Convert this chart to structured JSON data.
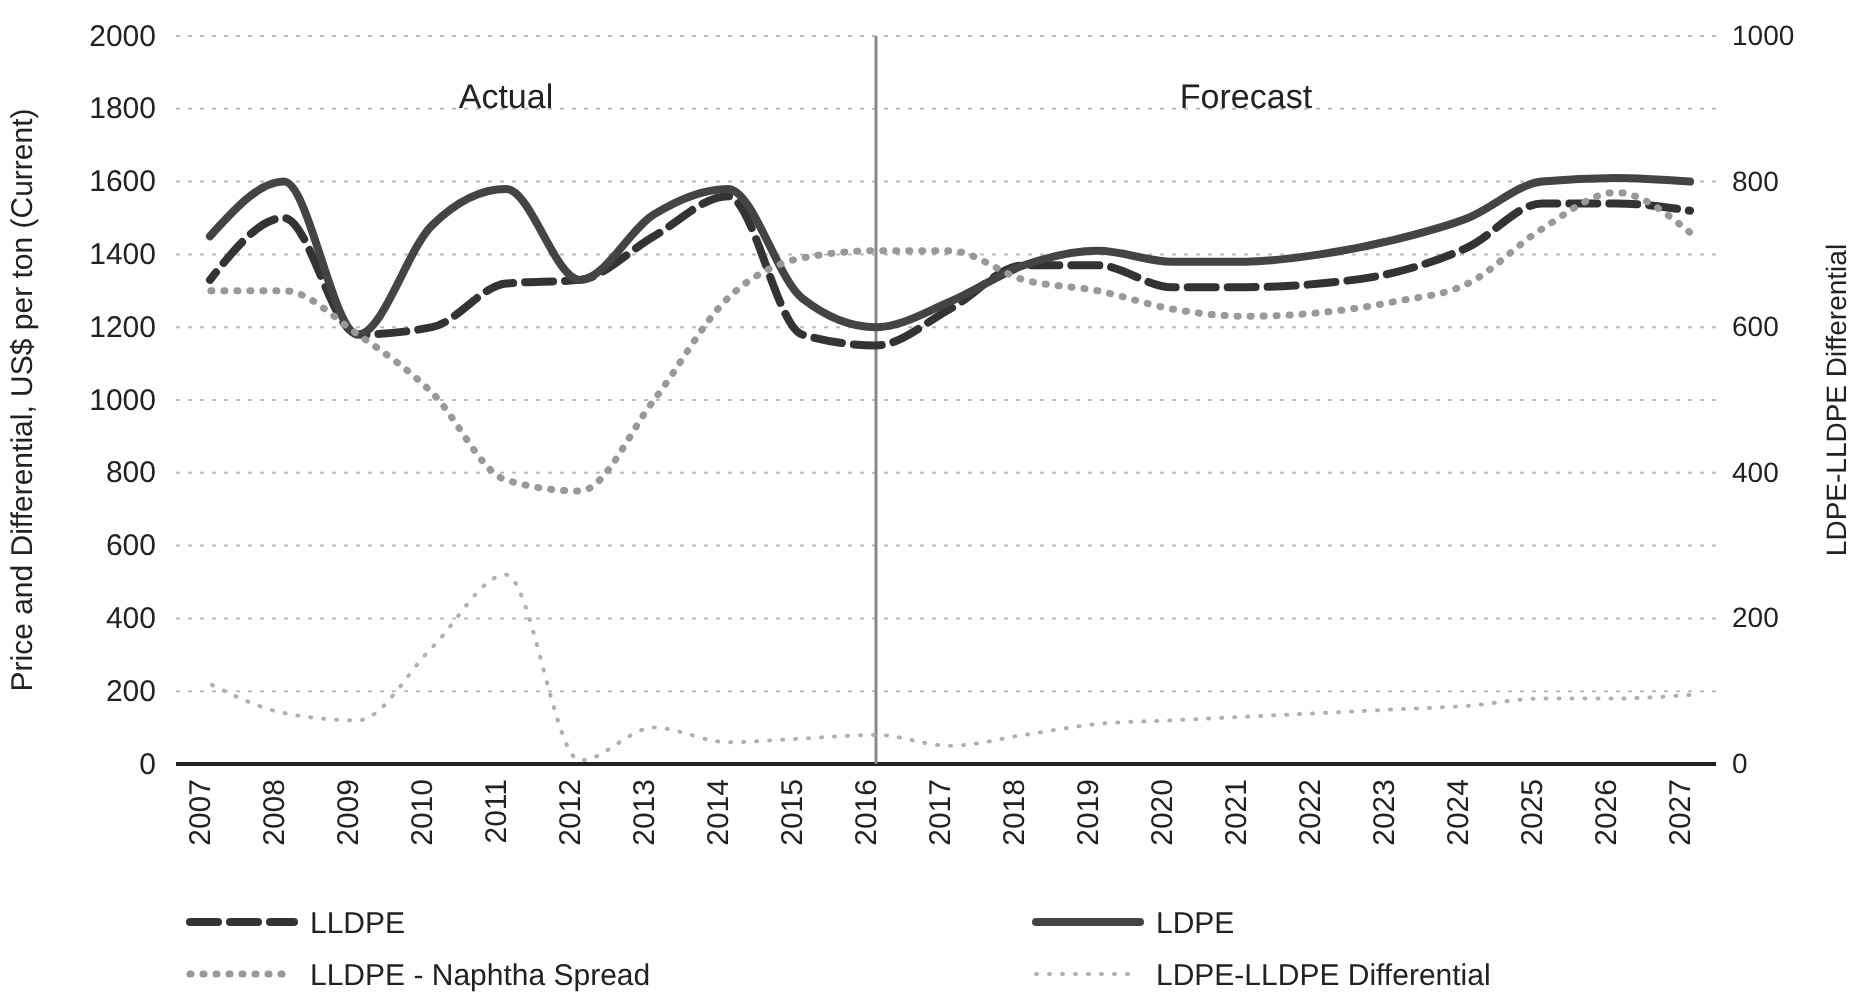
{
  "chart_data": {
    "type": "line",
    "ylabel": "Price and Differential, US$ per ton (Current)",
    "y2label": "LDPE-LLDPE Differential",
    "categories": [
      "2007",
      "2008",
      "2009",
      "2010",
      "2011",
      "2012",
      "2013",
      "2014",
      "2015",
      "2016",
      "2017",
      "2018",
      "2019",
      "2020",
      "2021",
      "2022",
      "2023",
      "2024",
      "2025",
      "2026",
      "2027"
    ],
    "series": [
      {
        "name": "LLDPE",
        "color": "#333333",
        "line_style": "dashed",
        "values": [
          1330,
          1500,
          1180,
          1200,
          1320,
          1330,
          1450,
          1560,
          1180,
          1150,
          1250,
          1370,
          1370,
          1310,
          1310,
          1320,
          1350,
          1420,
          1540,
          1540,
          1520
        ]
      },
      {
        "name": "LDPE",
        "color": "#444444",
        "line_style": "solid",
        "values": [
          1450,
          1600,
          1180,
          1480,
          1580,
          1330,
          1510,
          1580,
          1280,
          1200,
          1270,
          1370,
          1410,
          1380,
          1380,
          1400,
          1440,
          1500,
          1600,
          1610,
          1600
        ]
      },
      {
        "name": "LLDPE - Naphtha Spread",
        "color": "#999999",
        "line_style": "dotted",
        "values": [
          1300,
          1300,
          1180,
          1020,
          780,
          750,
          1000,
          1280,
          1390,
          1410,
          1410,
          1330,
          1300,
          1250,
          1230,
          1240,
          1270,
          1320,
          1470,
          1570,
          1460
        ]
      },
      {
        "name": "LDPE-LLDPE Differential",
        "color": "#b0b0b0",
        "line_style": "dotted",
        "axis": "y2",
        "values": [
          110,
          70,
          60,
          160,
          260,
          5,
          50,
          30,
          35,
          40,
          25,
          40,
          55,
          60,
          65,
          70,
          75,
          80,
          90,
          90,
          95
        ]
      }
    ],
    "ylim": [
      0,
      2000
    ],
    "yticks": [
      0,
      200,
      400,
      600,
      800,
      1000,
      1200,
      1400,
      1600,
      1800,
      2000
    ],
    "y2lim": [
      0,
      1000
    ],
    "y2ticks": [
      0,
      200,
      400,
      600,
      800,
      1000
    ],
    "grid": "y",
    "legend": "bottom",
    "ref_lines": [
      {
        "axis": "x",
        "value": "2016",
        "color": "#888888"
      }
    ],
    "annotations": [
      "Actual",
      "Forecast"
    ]
  }
}
